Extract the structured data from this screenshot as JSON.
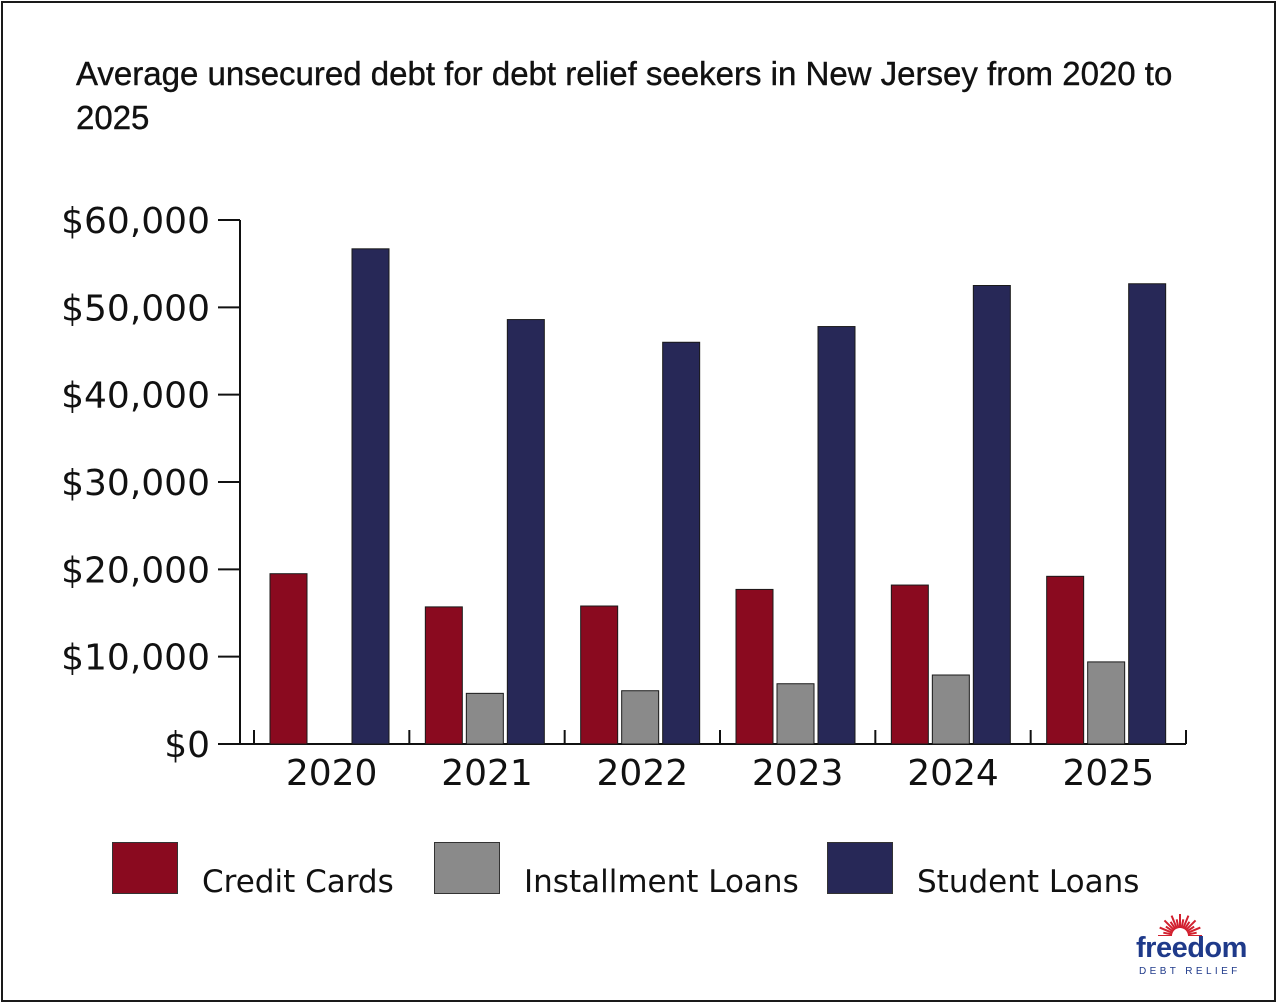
{
  "title": "Average unsecured debt for debt relief seekers in New Jersey from 2020 to 2025",
  "colors": {
    "credit_cards": "#8a0a1f",
    "installment_loans": "#8a8a8a",
    "student_loans": "#272857",
    "logo_blue": "#1f3a8a",
    "logo_red": "#d2202e"
  },
  "chart_data": {
    "type": "bar",
    "title": "Average unsecured debt for debt relief seekers in New Jersey from 2020 to 2025",
    "categories": [
      "2020",
      "2021",
      "2022",
      "2023",
      "2024",
      "2025"
    ],
    "series": [
      {
        "name": "Credit Cards",
        "color": "#8a0a1f",
        "values": [
          19500,
          15700,
          15800,
          17700,
          18200,
          19200
        ]
      },
      {
        "name": "Installment Loans",
        "color": "#8a8a8a",
        "values": [
          null,
          5800,
          6100,
          6900,
          7900,
          9400
        ]
      },
      {
        "name": "Student Loans",
        "color": "#272857",
        "values": [
          56700,
          48600,
          46000,
          47800,
          52500,
          52700
        ]
      }
    ],
    "ylim": [
      0,
      60000
    ],
    "yticks": [
      0,
      10000,
      20000,
      30000,
      40000,
      50000,
      60000
    ],
    "ytick_labels": [
      "$0",
      "$10,000",
      "$20,000",
      "$30,000",
      "$40,000",
      "$50,000",
      "$60,000"
    ],
    "xlabel": "",
    "ylabel": "",
    "grid": false,
    "legend_position": "bottom"
  },
  "legend": [
    {
      "label": "Credit Cards",
      "color": "#8a0a1f"
    },
    {
      "label": "Installment Loans",
      "color": "#8a8a8a"
    },
    {
      "label": "Student Loans",
      "color": "#272857"
    }
  ],
  "logo": {
    "word": "freedom",
    "sub": "DEBT RELIEF"
  }
}
